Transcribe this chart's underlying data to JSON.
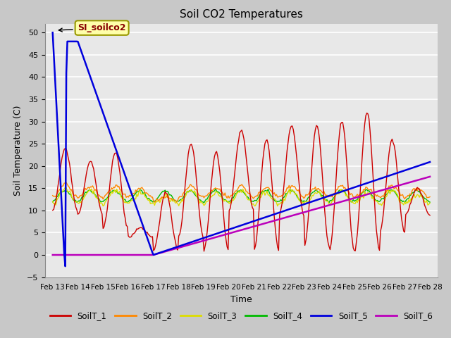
{
  "title": "Soil CO2 Temperatures",
  "xlabel": "Time",
  "ylabel": "Soil Temperature (C)",
  "ylim": [
    -5,
    52
  ],
  "yticks": [
    -5,
    0,
    5,
    10,
    15,
    20,
    25,
    30,
    35,
    40,
    45,
    50
  ],
  "annotation_label": "SI_soilco2",
  "fig_facecolor": "#c8c8c8",
  "ax_facecolor": "#e8e8e8",
  "colors": {
    "SoilT_1": "#cc0000",
    "SoilT_2": "#ff8800",
    "SoilT_3": "#dddd00",
    "SoilT_4": "#00bb00",
    "SoilT_5": "#0000dd",
    "SoilT_6": "#bb00bb"
  },
  "grid_color": "#ffffff",
  "n_days": 15,
  "pts_per_day": 24
}
